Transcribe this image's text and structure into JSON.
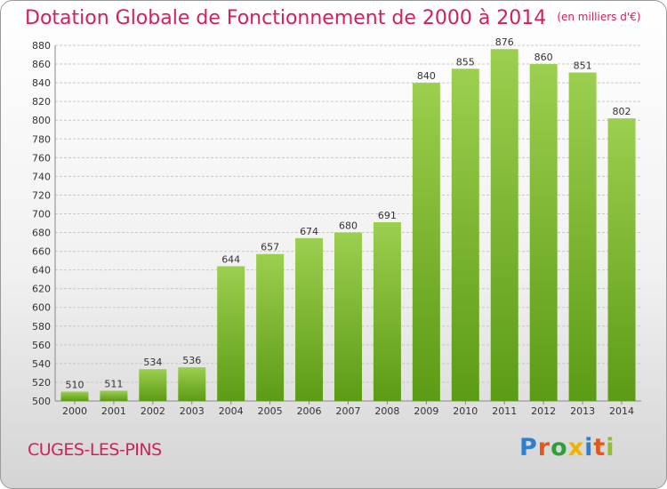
{
  "title": "Dotation Globale de Fonctionnement de 2000 à 2014",
  "unit": "(en milliers d'€)",
  "commune": "CUGES-LES-PINS",
  "brand": {
    "letters": [
      {
        "ch": "P",
        "color": "#2e7fcf"
      },
      {
        "ch": "r",
        "color": "#e05a1f"
      },
      {
        "ch": "o",
        "color": "#2e9f3a"
      },
      {
        "ch": "x",
        "color": "#f0b400"
      },
      {
        "ch": "i",
        "color": "#2e7fcf"
      },
      {
        "ch": "t",
        "color": "#e05a1f"
      },
      {
        "ch": "i",
        "color": "#8fbf2f"
      }
    ]
  },
  "colors": {
    "title": "#d02060",
    "bar_top": "#9ccf4f",
    "bar_bottom": "#5c9b15",
    "grid": "#c8c8c8"
  },
  "chart_data": {
    "type": "bar",
    "title": "Dotation Globale de Fonctionnement de 2000 à 2014",
    "subtitle": "(en milliers d'€)",
    "categories": [
      "2000",
      "2001",
      "2002",
      "2003",
      "2004",
      "2005",
      "2006",
      "2007",
      "2008",
      "2009",
      "2010",
      "2011",
      "2012",
      "2013",
      "2014"
    ],
    "values": [
      510,
      511,
      534,
      536,
      644,
      657,
      674,
      680,
      691,
      840,
      855,
      876,
      860,
      851,
      802
    ],
    "ylim": [
      500,
      880
    ],
    "yticks": [
      500,
      520,
      540,
      560,
      580,
      600,
      620,
      640,
      660,
      680,
      700,
      720,
      740,
      760,
      780,
      800,
      820,
      840,
      860,
      880
    ],
    "grid": true,
    "legend": "none"
  }
}
